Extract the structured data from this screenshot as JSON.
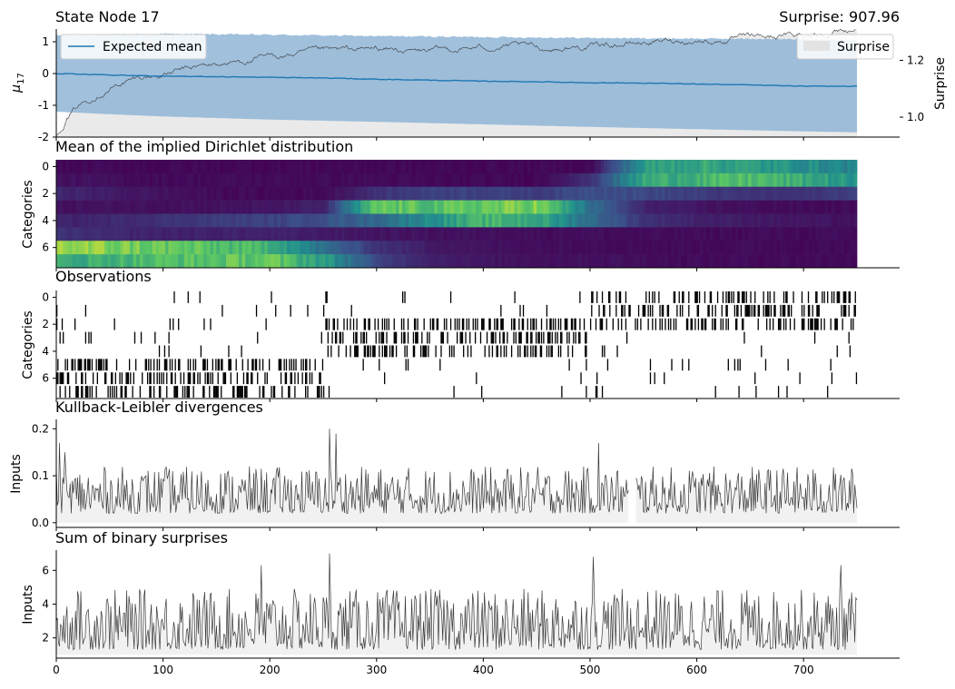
{
  "figure": {
    "colors": {
      "obs_accent": "#000000",
      "mean_line": "#1f77b4",
      "band": "#8fb5d6",
      "surprise_fill": "#e3e3e3",
      "trace": "#3a3a3a",
      "viridis_low": "#440154",
      "viridis_mid": "#21908d",
      "viridis_high": "#fde725"
    }
  },
  "chart_data": [
    {
      "type": "line",
      "title": "State Node 17",
      "title_right": "Surprise: 907.96",
      "ylabel": "μ",
      "ylabel_sub": "17",
      "ylabel_right": "Surprise",
      "xlim": [
        0,
        790
      ],
      "ylim": [
        -2,
        1.4
      ],
      "yticks": [
        -2,
        -1,
        0,
        1
      ],
      "ylim_right": [
        0.93,
        1.31
      ],
      "yticks_right": [
        1.0,
        1.2
      ],
      "legend": {
        "label": "Expected mean",
        "placement": "top-left"
      },
      "legend_right": {
        "label": "Surprise",
        "placement": "top-right"
      },
      "series": [
        {
          "name": "Expected mean",
          "x": [
            0,
            50,
            100,
            150,
            200,
            250,
            300,
            350,
            400,
            450,
            500,
            550,
            600,
            650,
            700,
            750
          ],
          "values": [
            0.0,
            -0.05,
            -0.08,
            -0.1,
            -0.12,
            -0.14,
            -0.18,
            -0.21,
            -0.24,
            -0.26,
            -0.29,
            -0.3,
            -0.33,
            -0.36,
            -0.4,
            -0.4
          ]
        },
        {
          "name": "Expected mean upper",
          "x": [
            0,
            100,
            200,
            300,
            400,
            500,
            600,
            700,
            750
          ],
          "values": [
            1.2,
            1.25,
            1.22,
            1.18,
            1.15,
            1.12,
            1.1,
            1.08,
            1.05
          ]
        },
        {
          "name": "Expected mean lower",
          "x": [
            0,
            50,
            100,
            200,
            300,
            400,
            500,
            600,
            700,
            750
          ],
          "values": [
            -1.2,
            -1.28,
            -1.35,
            -1.45,
            -1.52,
            -1.6,
            -1.68,
            -1.75,
            -1.82,
            -1.85
          ]
        },
        {
          "name": "Surprise",
          "axis": "right",
          "x": [
            0,
            10,
            20,
            40,
            60,
            80,
            100,
            140,
            180,
            220,
            260,
            300,
            340,
            380,
            420,
            460,
            500,
            540,
            580,
            620,
            660,
            700,
            750
          ],
          "values": [
            0.93,
            1.0,
            1.04,
            1.09,
            1.12,
            1.14,
            1.15,
            1.18,
            1.2,
            1.22,
            1.23,
            1.24,
            1.23,
            1.24,
            1.25,
            1.24,
            1.25,
            1.26,
            1.27,
            1.27,
            1.28,
            1.29,
            1.31
          ]
        }
      ]
    },
    {
      "type": "heatmap",
      "title": "Mean of the implied Dirichlet distribution",
      "ylabel": "Categories",
      "yticks": [
        0,
        2,
        4,
        6
      ],
      "categories": [
        0,
        1,
        2,
        3,
        4,
        5,
        6,
        7
      ],
      "x_segments": [
        0,
        50,
        100,
        150,
        200,
        250,
        300,
        350,
        400,
        450,
        500,
        550,
        600,
        650,
        700,
        750
      ],
      "values": [
        [
          0.02,
          0.02,
          0.02,
          0.02,
          0.02,
          0.02,
          0.02,
          0.02,
          0.02,
          0.02,
          0.02,
          0.55,
          0.6,
          0.55,
          0.5,
          0.45
        ],
        [
          0.05,
          0.04,
          0.03,
          0.03,
          0.03,
          0.03,
          0.03,
          0.02,
          0.02,
          0.02,
          0.15,
          0.6,
          0.65,
          0.7,
          0.6,
          0.5
        ],
        [
          0.12,
          0.08,
          0.05,
          0.03,
          0.02,
          0.03,
          0.15,
          0.2,
          0.2,
          0.18,
          0.25,
          0.22,
          0.18,
          0.15,
          0.15,
          0.2
        ],
        [
          0.05,
          0.05,
          0.05,
          0.05,
          0.06,
          0.1,
          0.75,
          0.7,
          0.75,
          0.8,
          0.35,
          0.1,
          0.06,
          0.04,
          0.03,
          0.03
        ],
        [
          0.1,
          0.12,
          0.15,
          0.18,
          0.2,
          0.25,
          0.35,
          0.5,
          0.65,
          0.6,
          0.35,
          0.15,
          0.1,
          0.08,
          0.06,
          0.05
        ],
        [
          0.15,
          0.12,
          0.1,
          0.1,
          0.1,
          0.08,
          0.06,
          0.05,
          0.05,
          0.04,
          0.04,
          0.03,
          0.03,
          0.03,
          0.03,
          0.03
        ],
        [
          0.85,
          0.8,
          0.75,
          0.7,
          0.65,
          0.35,
          0.15,
          0.08,
          0.05,
          0.04,
          0.04,
          0.03,
          0.03,
          0.03,
          0.03,
          0.03
        ],
        [
          0.6,
          0.65,
          0.7,
          0.72,
          0.75,
          0.55,
          0.2,
          0.1,
          0.06,
          0.05,
          0.05,
          0.04,
          0.03,
          0.03,
          0.03,
          0.03
        ]
      ]
    },
    {
      "type": "scatter",
      "title": "Observations",
      "ylabel": "Categories",
      "yticks": [
        0,
        2,
        4,
        6
      ],
      "categories": [
        0,
        1,
        2,
        3,
        4,
        5,
        6,
        7
      ],
      "active_ranges": [
        [
          [
            500,
            750
          ]
        ],
        [
          [
            500,
            750
          ]
        ],
        [
          [
            252,
            500
          ],
          [
            500,
            750
          ]
        ],
        [
          [
            252,
            500
          ]
        ],
        [
          [
            252,
            500
          ]
        ],
        [
          [
            0,
            252
          ]
        ],
        [
          [
            0,
            252
          ]
        ],
        [
          [
            0,
            252
          ]
        ]
      ]
    },
    {
      "type": "area",
      "title": "Kullback-Leibler divergences",
      "ylabel": "Inputs",
      "xlim": [
        0,
        790
      ],
      "ylim": [
        -0.01,
        0.22
      ],
      "yticks": [
        0.0,
        0.1,
        0.2
      ],
      "gap": [
        537,
        543
      ],
      "peaks": [
        {
          "x": 3,
          "y": 0.17
        },
        {
          "x": 8,
          "y": 0.15
        },
        {
          "x": 256,
          "y": 0.2
        },
        {
          "x": 262,
          "y": 0.19
        },
        {
          "x": 508,
          "y": 0.17
        }
      ]
    },
    {
      "type": "area",
      "title": "Sum of binary surprises",
      "ylabel": "Inputs",
      "xlim": [
        0,
        790
      ],
      "ylim": [
        0.8,
        7.2
      ],
      "yticks": [
        2,
        4,
        6
      ],
      "xticks": [
        0,
        100,
        200,
        300,
        400,
        500,
        600,
        700
      ],
      "peaks": [
        {
          "x": 192,
          "y": 6.3
        },
        {
          "x": 256,
          "y": 7.0
        },
        {
          "x": 503,
          "y": 6.8
        },
        {
          "x": 735,
          "y": 6.3
        }
      ]
    }
  ]
}
